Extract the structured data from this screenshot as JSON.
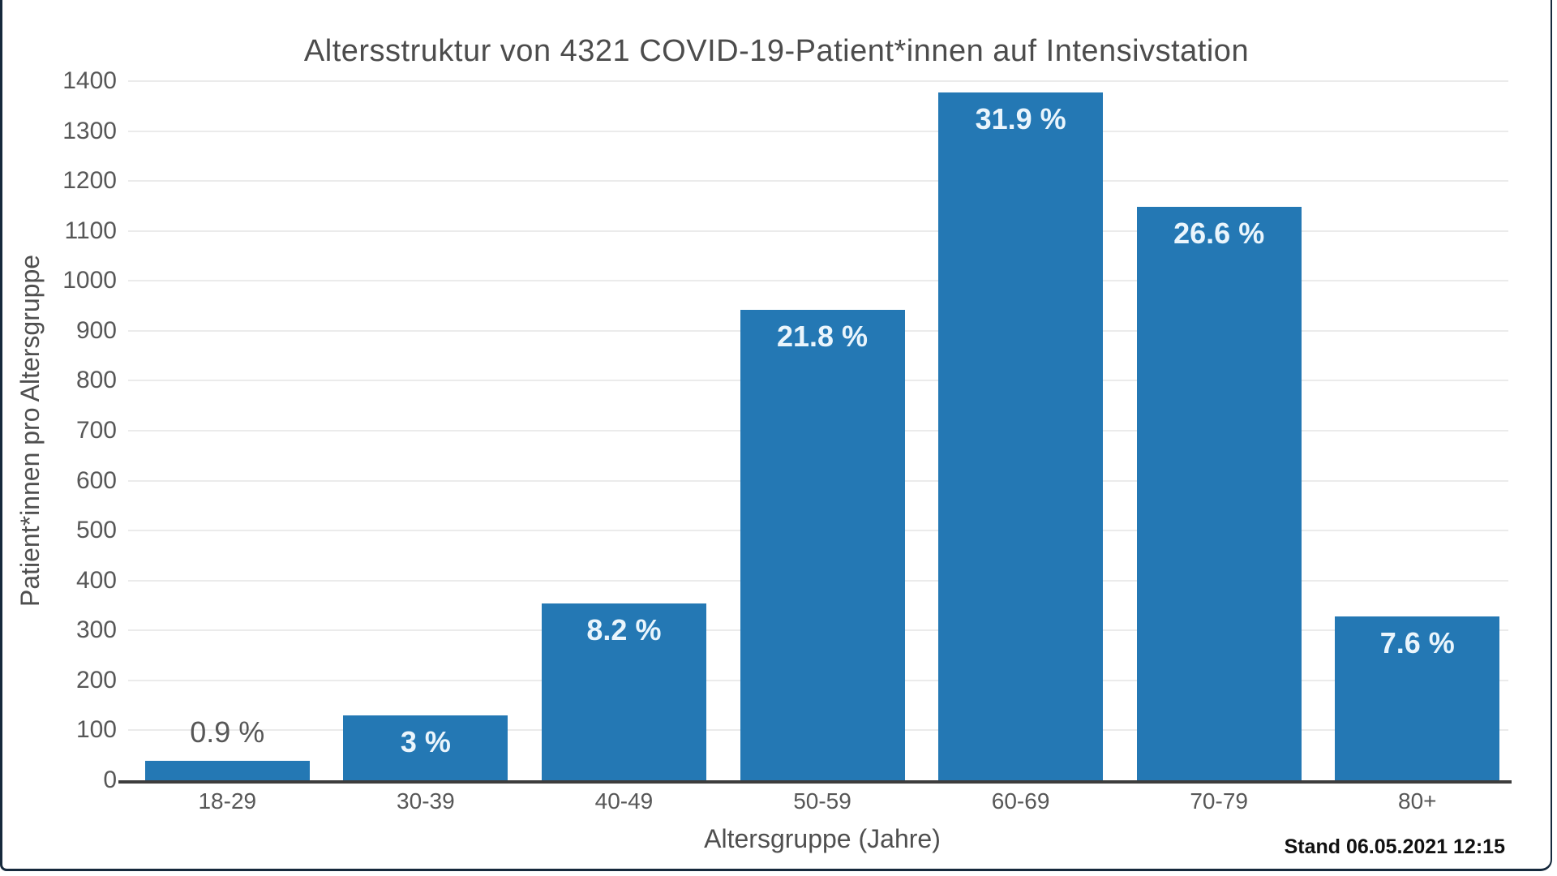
{
  "frame": {
    "border_color": "#16293c",
    "background": "#ffffff"
  },
  "chart_data": {
    "type": "bar",
    "title": "Altersstruktur von 4321 COVID-19-Patient*innen auf Intensivstation",
    "xlabel": "Altersgruppe (Jahre)",
    "ylabel": "Patient*innen pro Altersgruppe",
    "categories": [
      "18-29",
      "30-39",
      "40-49",
      "50-59",
      "60-69",
      "70-79",
      "80+"
    ],
    "values": [
      39,
      130,
      354,
      942,
      1378,
      1149,
      328
    ],
    "bar_labels": [
      "0.9 %",
      "3 %",
      "8.2 %",
      "21.8 %",
      "31.9 %",
      "26.6 %",
      "7.6 %"
    ],
    "total_patients": 4321,
    "ylim": [
      0,
      1400
    ],
    "ytick_step": 100,
    "grid": true,
    "legend": "none",
    "bar_color": "#2478b4",
    "inside_label_color": "#eaf5fc",
    "outside_label_color": "#575757",
    "inside_label_min_value": 100
  },
  "footer": {
    "stand_label": "Stand 06.05.2021 12:15"
  }
}
